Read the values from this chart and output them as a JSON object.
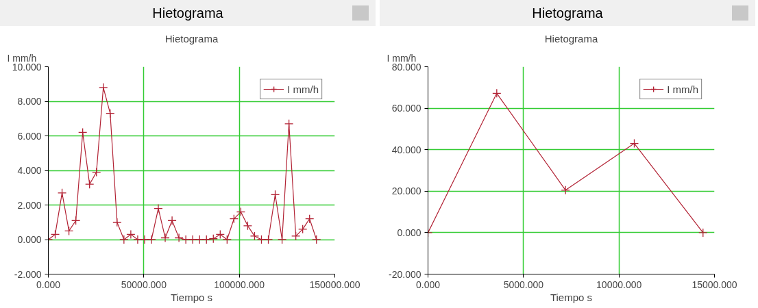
{
  "chart_data": [
    {
      "type": "line",
      "title": "Hietograma",
      "subtitle": "Hietograma",
      "xlabel": "Tiempo s",
      "ylabel": "I mm/h",
      "x": [
        0,
        3600,
        7200,
        10800,
        14400,
        18000,
        21600,
        25200,
        28800,
        32400,
        36000,
        39600,
        43200,
        46800,
        50400,
        54000,
        57600,
        61200,
        64800,
        68400,
        72000,
        75600,
        79200,
        82800,
        86400,
        90000,
        93600,
        97200,
        100800,
        104400,
        108000,
        111600,
        115200,
        118800,
        122400,
        126000,
        129600,
        133200,
        136800,
        140400
      ],
      "series": [
        {
          "name": "I mm/h",
          "color": "#b22234",
          "values": [
            0,
            0.3,
            2.7,
            0.5,
            1.1,
            6.2,
            3.2,
            3.9,
            8.8,
            7.3,
            1.0,
            0,
            0.3,
            0,
            0,
            0,
            1.8,
            0.1,
            1.1,
            0.1,
            0,
            0,
            0,
            0,
            0.05,
            0.3,
            0,
            1.2,
            1.6,
            0.8,
            0.2,
            0,
            0,
            2.6,
            0,
            6.7,
            0.2,
            0.6,
            1.2,
            0
          ]
        }
      ],
      "xlim": [
        0,
        150000
      ],
      "ylim": [
        -2,
        10
      ],
      "xticks": [
        {
          "value": 0,
          "label": "0.000"
        },
        {
          "value": 50000,
          "label": "50000.000"
        },
        {
          "value": 100000,
          "label": "100000.000"
        },
        {
          "value": 150000,
          "label": "150000.000"
        }
      ],
      "yticks": [
        {
          "value": -2,
          "label": "-2.000"
        },
        {
          "value": 0,
          "label": "0.000"
        },
        {
          "value": 2,
          "label": "2.000"
        },
        {
          "value": 4,
          "label": "4.000"
        },
        {
          "value": 6,
          "label": "6.000"
        },
        {
          "value": 8,
          "label": "8.000"
        },
        {
          "value": 10,
          "label": "10.000"
        }
      ],
      "grid": true,
      "legend": "top right",
      "marker": "cross"
    },
    {
      "type": "line",
      "title": "Hietograma",
      "subtitle": "Hietograma",
      "xlabel": "Tiempo s",
      "ylabel": "I mm/h",
      "x": [
        0,
        3600,
        7200,
        10800,
        14400
      ],
      "series": [
        {
          "name": "I mm/h",
          "color": "#b22234",
          "values": [
            0,
            67.2,
            20.5,
            43,
            0
          ]
        }
      ],
      "xlim": [
        0,
        15000
      ],
      "ylim": [
        -20,
        80
      ],
      "xticks": [
        {
          "value": 0,
          "label": "0.000"
        },
        {
          "value": 5000,
          "label": "5000.000"
        },
        {
          "value": 10000,
          "label": "10000.000"
        },
        {
          "value": 15000,
          "label": "15000.000"
        }
      ],
      "yticks": [
        {
          "value": -20,
          "label": "-20.000"
        },
        {
          "value": 0,
          "label": "0.000"
        },
        {
          "value": 20,
          "label": "20.000"
        },
        {
          "value": 40,
          "label": "40.000"
        },
        {
          "value": 60,
          "label": "60.000"
        },
        {
          "value": 80,
          "label": "80.000"
        }
      ],
      "grid": true,
      "legend": "top right",
      "marker": "cross"
    }
  ]
}
